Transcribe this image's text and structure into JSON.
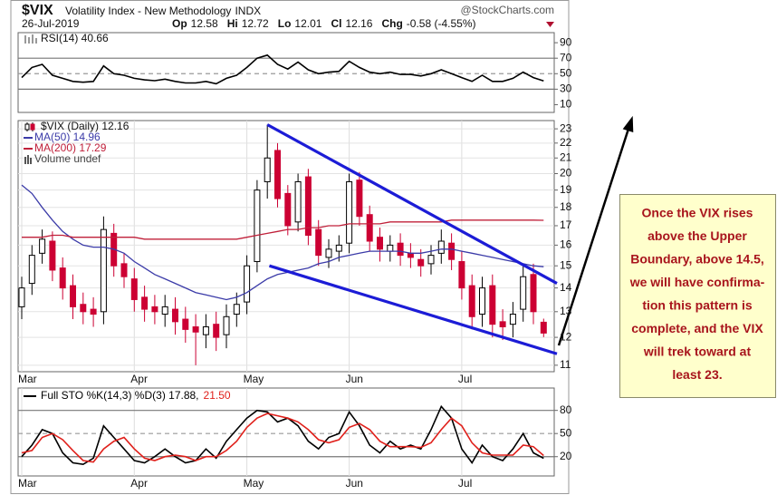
{
  "header": {
    "symbol": "$VIX",
    "name": "Volatility Index - New Methodology",
    "exchange": "INDX",
    "source": "@StockCharts.com",
    "date": "26-Jul-2019",
    "quote": [
      {
        "label": "Op",
        "value": "12.58"
      },
      {
        "label": "Hi",
        "value": "12.72"
      },
      {
        "label": "Lo",
        "value": "12.01"
      },
      {
        "label": "Cl",
        "value": "12.16"
      },
      {
        "label": "Chg",
        "value": "-0.58 (-4.55%)"
      }
    ]
  },
  "annotation": {
    "lines": [
      "Once the VIX rises",
      "above the Upper",
      "Boundary, above 14.5,",
      "we will have confirma-",
      "tion this pattern is",
      "complete, and the VIX",
      "will trek toward at",
      "least 23."
    ]
  },
  "chart_data": [
    {
      "type": "line",
      "title": "RSI(14) 40.66",
      "series": [
        {
          "color": "#000000",
          "values": [
            45,
            58,
            62,
            48,
            44,
            40,
            39,
            40,
            60,
            50,
            48,
            44,
            42,
            41,
            43,
            40,
            38,
            38,
            40,
            37,
            44,
            48,
            58,
            70,
            74,
            62,
            56,
            65,
            55,
            50,
            52,
            53,
            66,
            58,
            52,
            50,
            52,
            49,
            49,
            47,
            50,
            55,
            50,
            45,
            40,
            48,
            40,
            40,
            44,
            52,
            45,
            40.66
          ]
        }
      ],
      "ylim": [
        0,
        103
      ],
      "yticks": [
        90,
        70,
        50,
        30,
        10
      ],
      "hlines": [
        70,
        50,
        30
      ]
    },
    {
      "type": "candlestick",
      "title": "$VIX (Daily) 12.16",
      "volume_label": "Volume undef",
      "categories": [
        "Mar",
        null,
        null,
        null,
        null,
        null,
        null,
        null,
        null,
        null,
        null,
        "Apr",
        null,
        null,
        null,
        null,
        null,
        null,
        null,
        null,
        null,
        null,
        "May",
        null,
        null,
        null,
        null,
        null,
        null,
        null,
        null,
        null,
        "Jun",
        null,
        null,
        null,
        null,
        null,
        null,
        null,
        null,
        null,
        null,
        "Jul",
        null,
        null,
        null,
        null,
        null,
        null,
        null,
        null
      ],
      "open": [
        13.2,
        14.2,
        15.6,
        16.2,
        14.9,
        14.1,
        13.3,
        13.1,
        13.0,
        16.6,
        15.1,
        14.4,
        13.6,
        13.2,
        12.9,
        13.1,
        12.7,
        12.4,
        12.1,
        12.5,
        12.1,
        12.9,
        13.4,
        15.2,
        19.5,
        21.5,
        18.8,
        17.2,
        19.8,
        16.8,
        15.4,
        15.7,
        16.1,
        19.6,
        17.6,
        16.4,
        15.7,
        16.1,
        15.6,
        15.3,
        15.1,
        15.6,
        16.1,
        15.2,
        14.1,
        12.9,
        14.1,
        12.6,
        12.5,
        13.1,
        14.6,
        12.58
      ],
      "high": [
        14.5,
        16.0,
        16.8,
        16.7,
        15.4,
        14.6,
        13.8,
        13.6,
        17.5,
        17.1,
        15.6,
        14.9,
        14.1,
        13.7,
        13.7,
        13.6,
        13.2,
        12.9,
        12.9,
        13.0,
        13.3,
        13.8,
        15.5,
        19.6,
        23.3,
        22.0,
        19.3,
        20.0,
        20.3,
        17.3,
        16.3,
        16.5,
        20.0,
        20.1,
        18.1,
        16.9,
        16.5,
        16.6,
        16.1,
        15.8,
        16.0,
        16.8,
        16.6,
        15.7,
        14.6,
        14.5,
        14.6,
        13.1,
        13.4,
        15.0,
        15.1,
        12.72
      ],
      "low": [
        12.7,
        13.7,
        15.1,
        14.3,
        13.5,
        12.7,
        12.5,
        12.4,
        12.5,
        14.5,
        14.0,
        13.0,
        12.6,
        12.5,
        12.4,
        12.1,
        11.8,
        11.0,
        11.6,
        11.5,
        11.6,
        12.4,
        12.9,
        14.7,
        18.5,
        18.0,
        16.5,
        16.7,
        16.0,
        15.0,
        14.9,
        15.2,
        15.6,
        17.0,
        15.7,
        15.2,
        15.2,
        15.0,
        14.9,
        14.5,
        14.6,
        15.1,
        14.8,
        13.5,
        12.3,
        12.4,
        12.0,
        11.9,
        12.0,
        12.6,
        12.5,
        12.01
      ],
      "close": [
        14.0,
        15.5,
        16.3,
        14.8,
        14.0,
        13.2,
        13.0,
        12.9,
        16.8,
        15.0,
        14.5,
        13.5,
        13.1,
        13.0,
        13.2,
        12.6,
        12.3,
        12.2,
        12.4,
        12.0,
        12.8,
        13.3,
        15.0,
        19.0,
        21.0,
        18.5,
        17.0,
        19.5,
        16.5,
        15.5,
        15.8,
        16.0,
        19.5,
        17.5,
        16.2,
        15.8,
        16.0,
        15.5,
        15.4,
        15.0,
        15.5,
        16.2,
        15.3,
        14.0,
        12.8,
        14.0,
        12.5,
        12.4,
        12.9,
        14.5,
        13.0,
        12.16
      ],
      "up_color": "#000000",
      "down_color": "#cc0033",
      "series": [
        {
          "name": "MA(50) 14.96",
          "color": "#3b3ba8",
          "values": [
            19.3,
            18.8,
            18.0,
            17.3,
            16.7,
            16.3,
            16.0,
            15.9,
            15.9,
            15.8,
            15.6,
            15.2,
            14.9,
            14.6,
            14.4,
            14.2,
            14.0,
            13.8,
            13.7,
            13.6,
            13.5,
            13.6,
            13.8,
            14.1,
            14.4,
            14.6,
            14.7,
            14.8,
            14.9,
            15.1,
            15.2,
            15.4,
            15.5,
            15.6,
            15.7,
            15.7,
            15.7,
            15.7,
            15.6,
            15.6,
            15.7,
            15.8,
            15.8,
            15.7,
            15.6,
            15.5,
            15.4,
            15.3,
            15.2,
            15.1,
            15.0,
            14.96
          ]
        },
        {
          "name": "MA(200) 17.29",
          "color": "#c0203a",
          "values": [
            16.4,
            16.4,
            16.4,
            16.5,
            16.5,
            16.4,
            16.4,
            16.4,
            16.4,
            16.4,
            16.4,
            16.4,
            16.3,
            16.3,
            16.3,
            16.3,
            16.3,
            16.3,
            16.3,
            16.3,
            16.3,
            16.3,
            16.4,
            16.5,
            16.6,
            16.7,
            16.8,
            16.8,
            16.9,
            16.9,
            17.0,
            17.0,
            17.1,
            17.1,
            17.1,
            17.1,
            17.2,
            17.2,
            17.2,
            17.2,
            17.2,
            17.2,
            17.3,
            17.3,
            17.3,
            17.3,
            17.3,
            17.3,
            17.3,
            17.3,
            17.3,
            17.29
          ]
        }
      ],
      "trendlines": [
        {
          "x": [
            24,
            52.3
          ],
          "values": [
            23.3,
            14.2
          ]
        },
        {
          "x": [
            24.2,
            52.3
          ],
          "values": [
            15.0,
            11.4
          ]
        }
      ],
      "trendline_color": "#1c1cd6",
      "log_scale": true,
      "ylim": [
        10.78,
        23.6
      ],
      "yticks": [
        11,
        12,
        13,
        14,
        15,
        16,
        17,
        18,
        19,
        20,
        21,
        22,
        23
      ],
      "grid": true
    },
    {
      "type": "line",
      "categories": [
        "Mar",
        null,
        null,
        null,
        null,
        null,
        null,
        null,
        null,
        null,
        null,
        "Apr",
        null,
        null,
        null,
        null,
        null,
        null,
        null,
        null,
        null,
        null,
        "May",
        null,
        null,
        null,
        null,
        null,
        null,
        null,
        null,
        null,
        "Jun",
        null,
        null,
        null,
        null,
        null,
        null,
        null,
        null,
        null,
        null,
        "Jul",
        null,
        null,
        null,
        null,
        null,
        null,
        null,
        null
      ],
      "series": [
        {
          "name": "Full STO %K(14,3) %D(3) 17.88,",
          "color": "#000000",
          "values": [
            20,
            35,
            55,
            50,
            25,
            12,
            10,
            18,
            60,
            45,
            30,
            15,
            12,
            20,
            30,
            20,
            12,
            15,
            30,
            18,
            40,
            55,
            70,
            80,
            78,
            65,
            70,
            60,
            40,
            30,
            45,
            50,
            78,
            60,
            35,
            25,
            40,
            30,
            35,
            30,
            55,
            85,
            70,
            30,
            12,
            35,
            20,
            15,
            30,
            50,
            25,
            17.88
          ]
        },
        {
          "name": "21.50",
          "color": "#e0201b",
          "values": [
            25,
            28,
            45,
            50,
            42,
            28,
            15,
            13,
            30,
            40,
            45,
            30,
            18,
            15,
            20,
            22,
            20,
            15,
            20,
            20,
            28,
            40,
            58,
            70,
            76,
            73,
            70,
            65,
            55,
            42,
            38,
            42,
            58,
            63,
            55,
            40,
            33,
            33,
            33,
            32,
            38,
            55,
            70,
            60,
            38,
            25,
            22,
            22,
            22,
            35,
            33,
            21.5
          ]
        }
      ],
      "ylim": [
        -5,
        109
      ],
      "yticks": [
        80,
        50,
        20
      ],
      "hlines": [
        80,
        50,
        20
      ]
    }
  ]
}
